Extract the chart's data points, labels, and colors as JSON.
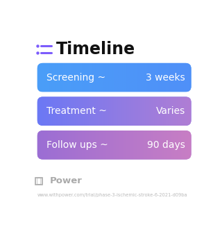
{
  "title": "Timeline",
  "title_fontsize": 17,
  "title_color": "#111111",
  "title_bold": true,
  "icon_color": "#7C5CFC",
  "background_color": "#ffffff",
  "rows": [
    {
      "label": "Screening ~",
      "value": "3 weeks",
      "gradient_left": "#4A9EF8",
      "gradient_right": "#5090F8"
    },
    {
      "label": "Treatment ~",
      "value": "Varies",
      "gradient_left": "#6B78F5",
      "gradient_right": "#B07ED4"
    },
    {
      "label": "Follow ups ~",
      "value": "90 days",
      "gradient_left": "#9B6ED4",
      "gradient_right": "#C87EC4"
    }
  ],
  "text_color": "#ffffff",
  "label_fontsize": 10,
  "value_fontsize": 10,
  "footer_text": "Power",
  "footer_color": "#aaaaaa",
  "url_text": "www.withpower.com/trial/phase-3-ischemic-stroke-6-2021-d09ba",
  "url_color": "#bbbbbb",
  "url_fontsize": 4.8,
  "footer_fontsize": 9.5
}
